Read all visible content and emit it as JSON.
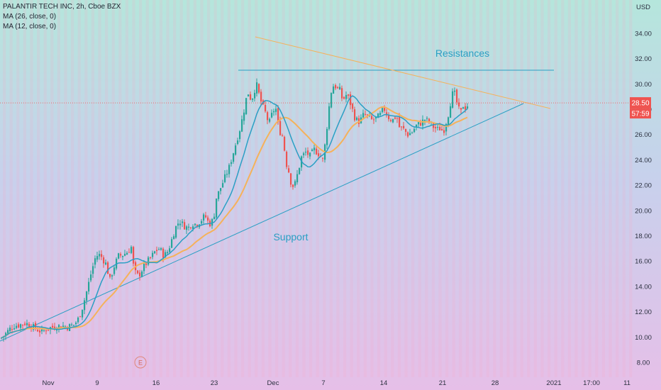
{
  "header": {
    "symbol_line": "PALANTIR TECH INC, 2h, Cboe BZX",
    "ma26_label": "MA (26, close, 0)",
    "ma12_label": "MA (12, close, 0)"
  },
  "currency_label": "USD",
  "chart_data": {
    "type": "candlestick",
    "title": "PALANTIR TECH INC, 2h, Cboe BZX",
    "y_ticks": [
      "8.00",
      "10.00",
      "12.00",
      "14.00",
      "16.00",
      "18.00",
      "20.00",
      "22.00",
      "24.00",
      "26.00",
      "28.00",
      "30.00",
      "32.00",
      "34.00"
    ],
    "x_ticks": [
      "Nov",
      "9",
      "16",
      "23",
      "Dec",
      "7",
      "14",
      "21",
      "28",
      "2021",
      "17:00",
      "11"
    ],
    "ylim": [
      7.3,
      36.5
    ],
    "current_price": "28.50",
    "countdown": "57:59",
    "annotations": [
      "Resistances",
      "Support"
    ],
    "event_marker": "E",
    "colors": {
      "up": "#26a69a",
      "down": "#ef5350",
      "ma26": "#f5b25a",
      "ma12": "#2a9fc4",
      "resistance_line": "#2a9fc4",
      "trend_upper": "#f5b25a",
      "trend_lower": "#2a9fc4",
      "price_line": "#ef5350"
    },
    "candle_close_path": [
      [
        0,
        9.9
      ],
      [
        6,
        10.2
      ],
      [
        12,
        10.6
      ],
      [
        18,
        10.9
      ],
      [
        26,
        10.95
      ],
      [
        34,
        11.1
      ],
      [
        40,
        11.0
      ],
      [
        48,
        10.7
      ],
      [
        58,
        10.4
      ],
      [
        66,
        10.7
      ],
      [
        76,
        10.8
      ],
      [
        86,
        10.9
      ],
      [
        94,
        10.8
      ],
      [
        104,
        11.0
      ],
      [
        110,
        11.5
      ],
      [
        116,
        12.5
      ],
      [
        122,
        13.8
      ],
      [
        128,
        15.2
      ],
      [
        134,
        16.4
      ],
      [
        140,
        16.5
      ],
      [
        148,
        15.8
      ],
      [
        154,
        14.5
      ],
      [
        160,
        15.6
      ],
      [
        166,
        16.4
      ],
      [
        172,
        16.5
      ],
      [
        178,
        16.7
      ],
      [
        184,
        17.1
      ],
      [
        188,
        15.2
      ],
      [
        194,
        14.8
      ],
      [
        200,
        15.4
      ],
      [
        206,
        15.9
      ],
      [
        212,
        16.3
      ],
      [
        218,
        16.8
      ],
      [
        224,
        17.0
      ],
      [
        230,
        16.4
      ],
      [
        236,
        16.8
      ],
      [
        240,
        17.5
      ],
      [
        246,
        18.6
      ],
      [
        252,
        19.2
      ],
      [
        258,
        18.8
      ],
      [
        264,
        18.6
      ],
      [
        270,
        19.0
      ],
      [
        276,
        18.9
      ],
      [
        282,
        19.2
      ],
      [
        288,
        19.6
      ],
      [
        294,
        18.9
      ],
      [
        300,
        19.3
      ],
      [
        304,
        21.0
      ],
      [
        310,
        21.8
      ],
      [
        316,
        22.6
      ],
      [
        322,
        23.4
      ],
      [
        328,
        24.6
      ],
      [
        334,
        25.8
      ],
      [
        338,
        26.6
      ],
      [
        344,
        28.2
      ],
      [
        348,
        29.4
      ],
      [
        352,
        28.9
      ],
      [
        356,
        29.0
      ],
      [
        360,
        30.1
      ],
      [
        364,
        29.2
      ],
      [
        368,
        28.4
      ],
      [
        374,
        27.6
      ],
      [
        378,
        26.8
      ],
      [
        384,
        27.9
      ],
      [
        388,
        28.0
      ],
      [
        392,
        26.4
      ],
      [
        398,
        25.8
      ],
      [
        402,
        23.8
      ],
      [
        406,
        23.1
      ],
      [
        410,
        22.0
      ],
      [
        414,
        21.9
      ],
      [
        418,
        22.8
      ],
      [
        424,
        24.2
      ],
      [
        430,
        24.6
      ],
      [
        436,
        24.3
      ],
      [
        442,
        24.8
      ],
      [
        448,
        24.5
      ],
      [
        454,
        24.0
      ],
      [
        458,
        25.5
      ],
      [
        462,
        27.8
      ],
      [
        466,
        29.4
      ],
      [
        470,
        30.0
      ],
      [
        474,
        29.6
      ],
      [
        478,
        29.5
      ],
      [
        482,
        28.7
      ],
      [
        488,
        29.2
      ],
      [
        494,
        28.3
      ],
      [
        500,
        27.2
      ],
      [
        506,
        27.0
      ],
      [
        512,
        27.6
      ],
      [
        518,
        27.4
      ],
      [
        524,
        27.1
      ],
      [
        530,
        27.3
      ],
      [
        536,
        27.6
      ],
      [
        540,
        28.1
      ],
      [
        546,
        27.4
      ],
      [
        552,
        27.1
      ],
      [
        558,
        27.5
      ],
      [
        562,
        26.6
      ],
      [
        568,
        26.4
      ],
      [
        574,
        26.0
      ],
      [
        580,
        26.2
      ],
      [
        586,
        26.7
      ],
      [
        592,
        26.9
      ],
      [
        598,
        27.2
      ],
      [
        604,
        27.0
      ],
      [
        610,
        26.6
      ],
      [
        616,
        26.4
      ],
      [
        620,
        26.5
      ],
      [
        624,
        26.2
      ],
      [
        628,
        27.0
      ],
      [
        632,
        27.8
      ],
      [
        636,
        29.2
      ],
      [
        640,
        29.2
      ],
      [
        644,
        28.3
      ],
      [
        648,
        27.6
      ],
      [
        652,
        28.3
      ],
      [
        656,
        28.1
      ],
      [
        660,
        28.5
      ]
    ]
  }
}
